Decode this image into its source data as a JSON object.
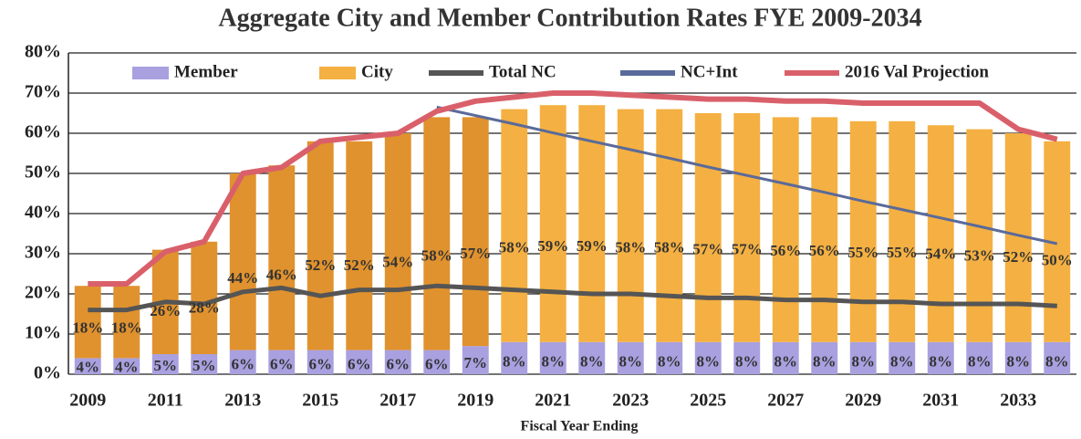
{
  "chart_data": {
    "type": "bar",
    "title": "Aggregate City and Member Contribution Rates FYE 2009-2034",
    "x_label": "Fiscal Year Ending",
    "categories": [
      "2009",
      null,
      "2011",
      null,
      "2013",
      null,
      "2015",
      null,
      "2017",
      null,
      "2019",
      null,
      "2021",
      null,
      "2023",
      null,
      "2025",
      null,
      "2027",
      null,
      "2029",
      null,
      "2031",
      null,
      "2033",
      null
    ],
    "ylim": [
      0,
      80
    ],
    "yticks": [
      {
        "value": 0,
        "label": "0%"
      },
      {
        "value": 10,
        "label": "10%"
      },
      {
        "value": 20,
        "label": "20%"
      },
      {
        "value": 30,
        "label": "30%"
      },
      {
        "value": 40,
        "label": "40%"
      },
      {
        "value": 50,
        "label": "50%"
      },
      {
        "value": 60,
        "label": "60%"
      },
      {
        "value": 70,
        "label": "70%"
      },
      {
        "value": 80,
        "label": "80%"
      }
    ],
    "grid": true,
    "legend": "top",
    "series": [
      {
        "name": "Member",
        "kind": "bar",
        "color": "#a9a0e0",
        "values": [
          4,
          4,
          5,
          5,
          6,
          6,
          6,
          6,
          6,
          6,
          7,
          8,
          8,
          8,
          8,
          8,
          8,
          8,
          8,
          8,
          8,
          8,
          8,
          8,
          8,
          8
        ],
        "value_labels": [
          "4%",
          "4%",
          "5%",
          "5%",
          "6%",
          "6%",
          "6%",
          "6%",
          "6%",
          "6%",
          "7%",
          "8%",
          "8%",
          "8%",
          "8%",
          "8%",
          "8%",
          "8%",
          "8%",
          "8%",
          "8%",
          "8%",
          "8%",
          "8%",
          "8%",
          "8%"
        ]
      },
      {
        "name": "City",
        "kind": "bar",
        "color": "#f4b042",
        "colors": [
          "#e0922e",
          "#e0922e",
          "#e0922e",
          "#e0922e",
          "#e0922e",
          "#e0922e",
          "#e0922e",
          "#e0922e",
          "#e0922e",
          "#e0922e",
          "#e0922e",
          "#f4b042",
          "#f4b042",
          "#f4b042",
          "#f4b042",
          "#f4b042",
          "#f4b042",
          "#f4b042",
          "#f4b042",
          "#f4b042",
          "#f4b042",
          "#f4b042",
          "#f4b042",
          "#f4b042",
          "#f4b042",
          "#f4b042"
        ],
        "values": [
          18,
          18,
          26,
          28,
          44,
          46,
          52,
          52,
          54,
          58,
          57,
          58,
          59,
          59,
          58,
          58,
          57,
          57,
          56,
          56,
          55,
          55,
          54,
          53,
          52,
          50
        ],
        "value_labels": [
          "18%",
          "18%",
          "26%",
          "28%",
          "44%",
          "46%",
          "52%",
          "52%",
          "54%",
          "58%",
          "57%",
          "58%",
          "59%",
          "59%",
          "58%",
          "58%",
          "57%",
          "57%",
          "56%",
          "56%",
          "55%",
          "55%",
          "54%",
          "53%",
          "52%",
          "50%"
        ]
      },
      {
        "name": "Total NC",
        "kind": "line",
        "color": "#555555",
        "values": [
          16,
          16,
          18,
          17.5,
          20.5,
          21.5,
          19.5,
          21,
          21,
          22,
          21.5,
          21,
          20.5,
          20,
          20,
          19.5,
          19,
          19,
          18.5,
          18.5,
          18,
          18,
          17.5,
          17.5,
          17.5,
          17
        ]
      },
      {
        "name": "NC+Int",
        "kind": "line",
        "color": "#5a6a9a",
        "values": [
          null,
          null,
          null,
          null,
          null,
          null,
          null,
          null,
          null,
          66.5,
          64.4,
          62.3,
          60.1,
          58,
          55.9,
          53.8,
          51.6,
          49.5,
          47.4,
          45.3,
          43.1,
          41,
          38.9,
          36.8,
          34.6,
          32.5
        ]
      },
      {
        "name": "2016 Val Projection",
        "kind": "line",
        "color": "#d9606a",
        "values": [
          22.5,
          22.5,
          30.5,
          33,
          50,
          51.5,
          58,
          59,
          60,
          65.5,
          68,
          69,
          70,
          70,
          69.5,
          69,
          68.5,
          68.5,
          68,
          68,
          67.5,
          67.5,
          67.5,
          67.5,
          61,
          58.5
        ]
      }
    ]
  }
}
